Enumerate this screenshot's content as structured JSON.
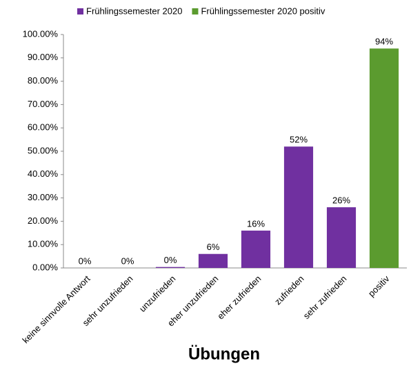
{
  "chart_data": {
    "type": "bar",
    "x_label": "Übungen",
    "categories": [
      "keine sinnvolle Antwort",
      "sehr unzufrieden",
      "unzufrieden",
      "eher unzufrieden",
      "eher zufrieden",
      "zufrieden",
      "sehr zufrieden",
      "positiv"
    ],
    "series": [
      {
        "name": "Frühlingssemester 2020",
        "color": "#7030a0",
        "values": [
          0,
          0,
          0.4,
          6,
          16,
          52,
          26,
          null
        ],
        "value_labels": [
          "0%",
          "0%",
          "0%",
          "6%",
          "16%",
          "52%",
          "26%",
          null
        ]
      },
      {
        "name": "Frühlingssemester 2020 positiv",
        "color": "#5b9b2f",
        "values": [
          null,
          null,
          null,
          null,
          null,
          null,
          null,
          94
        ],
        "value_labels": [
          null,
          null,
          null,
          null,
          null,
          null,
          null,
          "94%"
        ]
      }
    ],
    "ylim": [
      0,
      100
    ],
    "yticks": [
      {
        "value": 0,
        "label": "0.00%"
      },
      {
        "value": 10,
        "label": "10.00%"
      },
      {
        "value": 20,
        "label": "20.00%"
      },
      {
        "value": 30,
        "label": "30.00%"
      },
      {
        "value": 40,
        "label": "40.00%"
      },
      {
        "value": 50,
        "label": "50.00%"
      },
      {
        "value": 60,
        "label": "60.00%"
      },
      {
        "value": 70,
        "label": "70.00%"
      },
      {
        "value": 80,
        "label": "80.00%"
      },
      {
        "value": 90,
        "label": "90.00%"
      },
      {
        "value": 100,
        "label": "100.00%"
      }
    ],
    "grid": false,
    "legend": "top"
  }
}
